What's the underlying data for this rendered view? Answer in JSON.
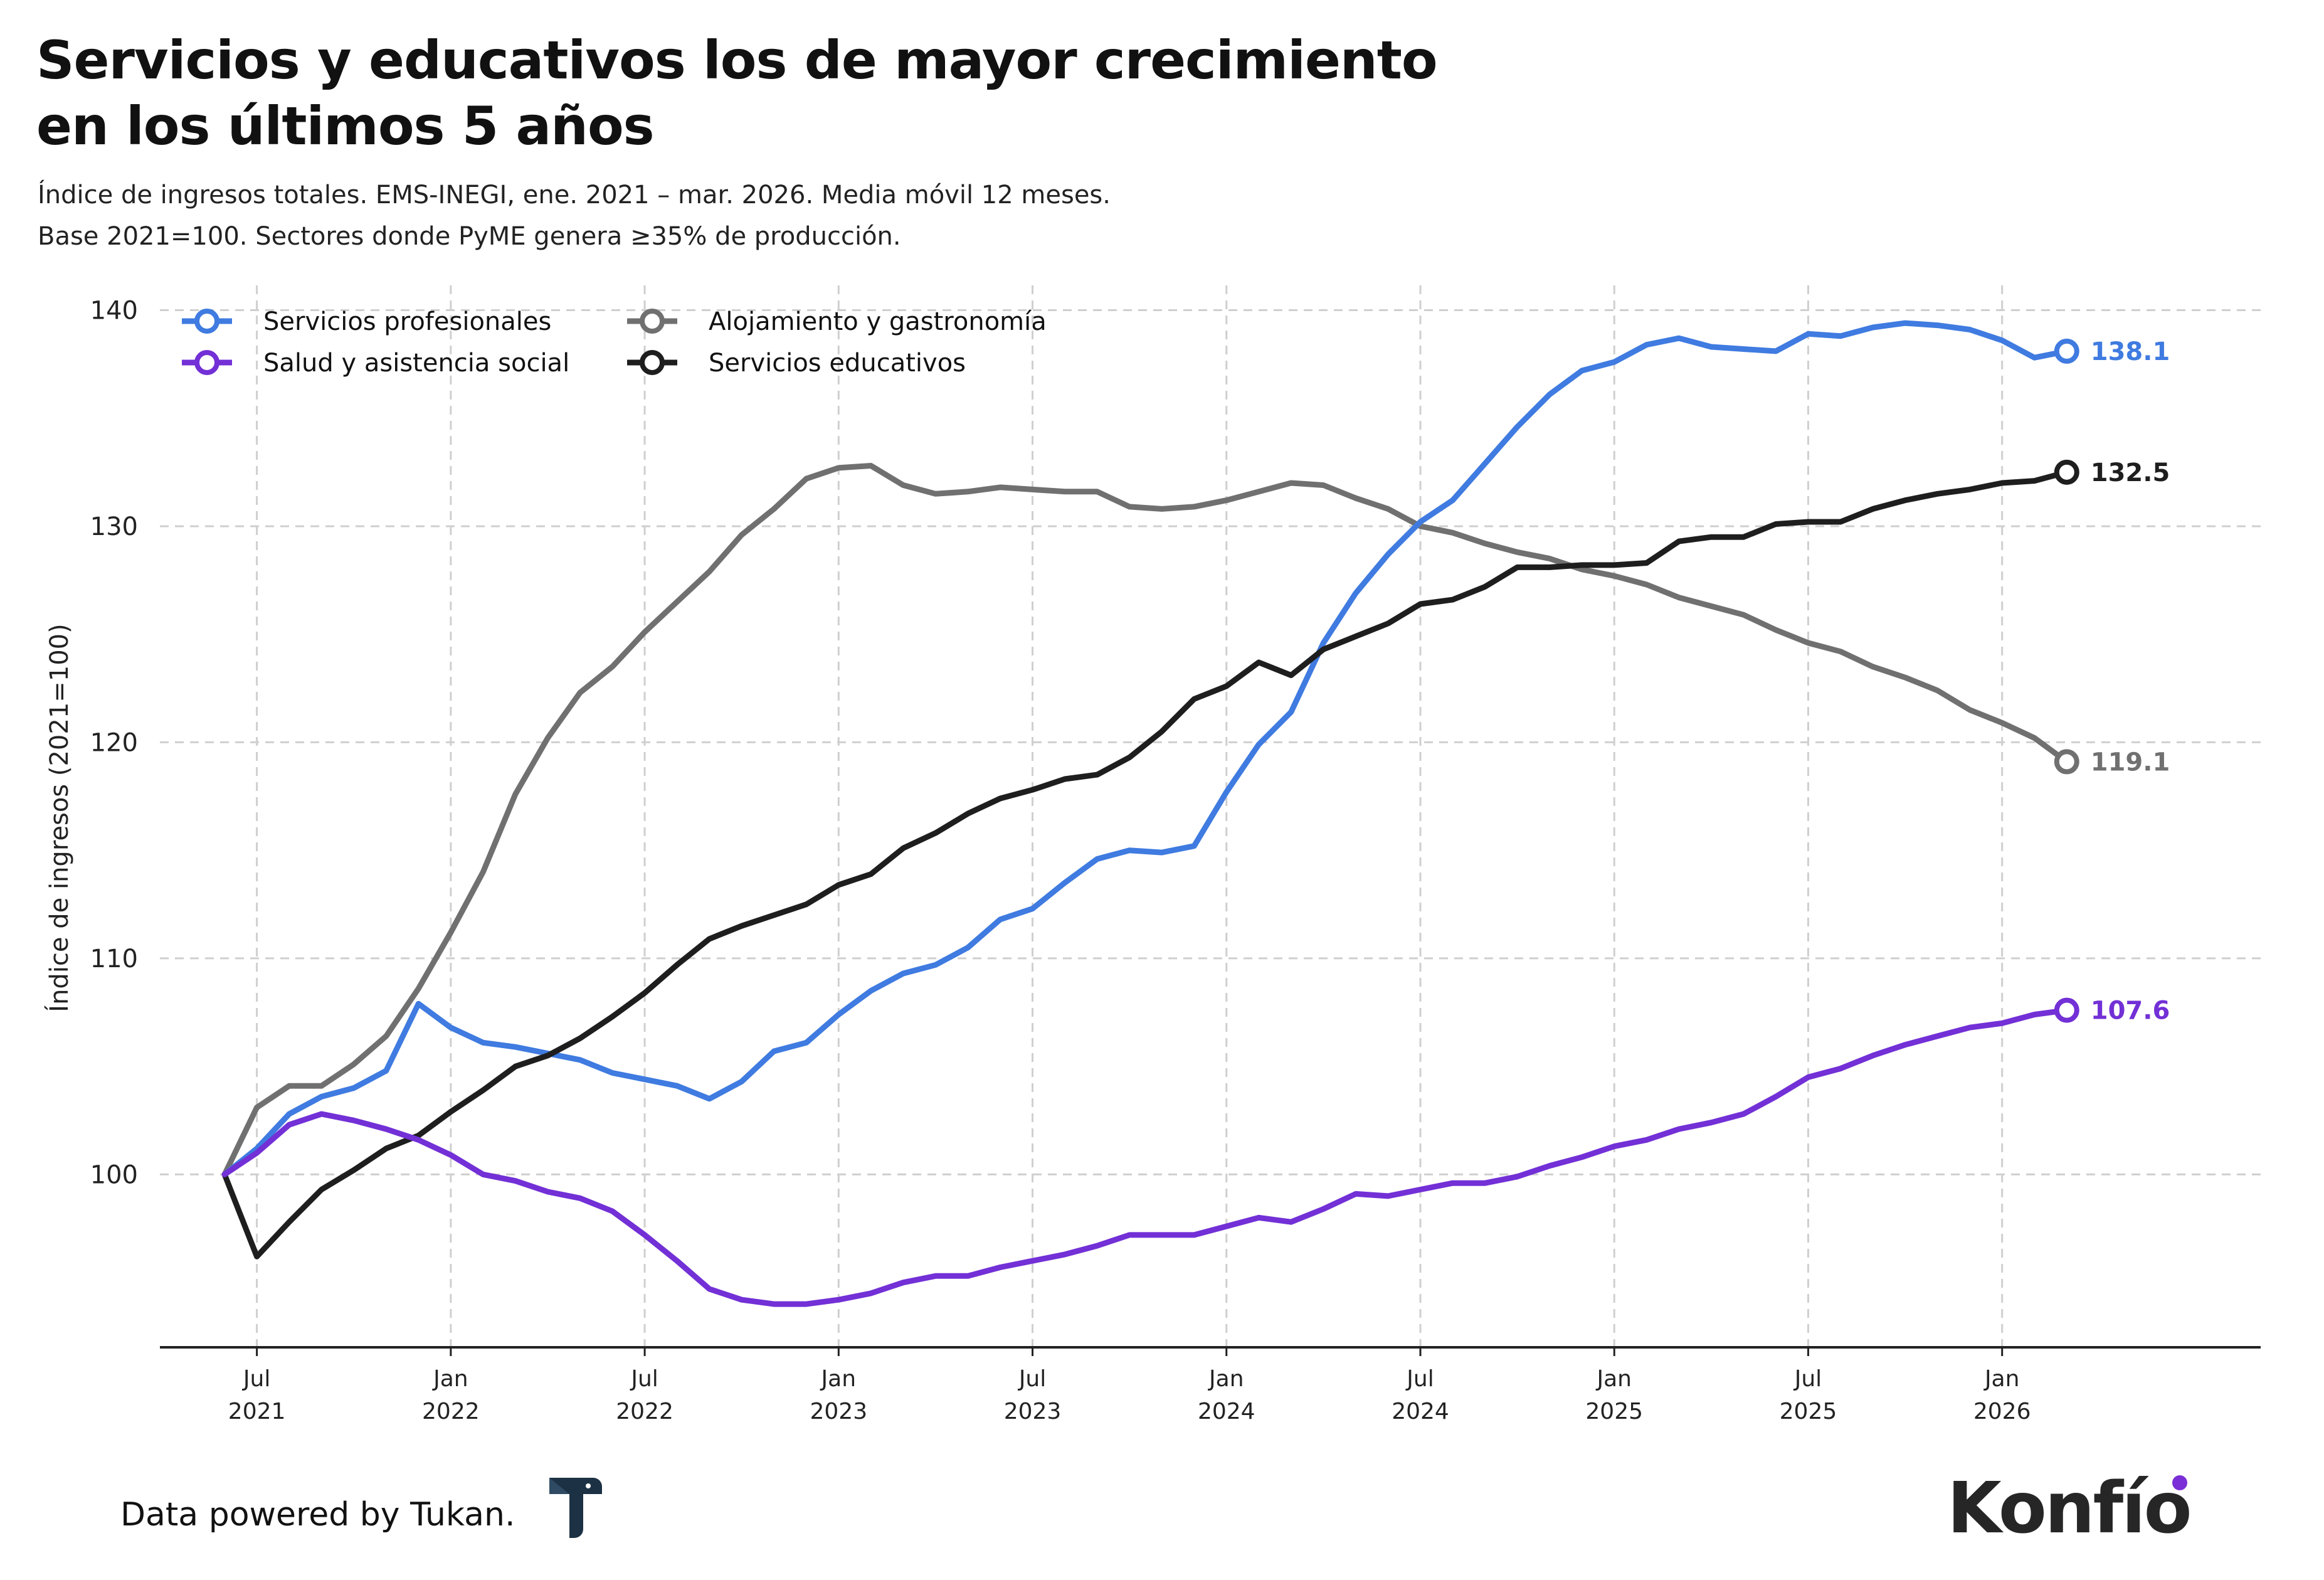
{
  "header": {
    "title_line1": "Servicios y educativos los de mayor crecimiento",
    "title_line2": "en los últimos 5 años",
    "subtitle_line1": "Índice de ingresos totales. EMS-INEGI, ene. 2021 – mar. 2026. Media móvil 12 meses.",
    "subtitle_line2": "Base 2021=100. Sectores donde PyME genera ≥35% de producción."
  },
  "footer": {
    "credit": "Data powered by Tukan.",
    "tukan_logo_icon": "tukan-logo-icon",
    "brand": "Konfío"
  },
  "colors": {
    "servicios_profesionales": "#3f7be0",
    "salud": "#7230d6",
    "alojamiento": "#707070",
    "educativos": "#1e1e1e",
    "grid": "#cfcfcf",
    "brand_dot": "#7b2fd6"
  },
  "chart_data": {
    "type": "line",
    "title": "Servicios y educativos los de mayor crecimiento en los últimos 5 años",
    "ylabel": "Índice de ingresos (2021=100)",
    "xlabel": "",
    "ylim": [
      92,
      141
    ],
    "yticks": [
      100,
      110,
      120,
      130,
      140
    ],
    "x_range": [
      "2021-04",
      "2026-09"
    ],
    "x_ticks": [
      {
        "date": "2021-07",
        "top": "Jul",
        "bottom": "2021"
      },
      {
        "date": "2022-01",
        "top": "Jan",
        "bottom": "2022"
      },
      {
        "date": "2022-07",
        "top": "Jul",
        "bottom": "2022"
      },
      {
        "date": "2023-01",
        "top": "Jan",
        "bottom": "2023"
      },
      {
        "date": "2023-07",
        "top": "Jul",
        "bottom": "2023"
      },
      {
        "date": "2024-01",
        "top": "Jan",
        "bottom": "2024"
      },
      {
        "date": "2024-07",
        "top": "Jul",
        "bottom": "2024"
      },
      {
        "date": "2025-01",
        "top": "Jan",
        "bottom": "2025"
      },
      {
        "date": "2025-07",
        "top": "Jul",
        "bottom": "2025"
      },
      {
        "date": "2026-01",
        "top": "Jan",
        "bottom": "2026"
      }
    ],
    "grid": true,
    "legend_position": "top-left",
    "x": [
      "2021-06",
      "2021-07",
      "2021-08",
      "2021-09",
      "2021-10",
      "2021-11",
      "2021-12",
      "2022-01",
      "2022-02",
      "2022-03",
      "2022-04",
      "2022-05",
      "2022-06",
      "2022-07",
      "2022-08",
      "2022-09",
      "2022-10",
      "2022-11",
      "2022-12",
      "2023-01",
      "2023-02",
      "2023-03",
      "2023-04",
      "2023-05",
      "2023-06",
      "2023-07",
      "2023-08",
      "2023-09",
      "2023-10",
      "2023-11",
      "2023-12",
      "2024-01",
      "2024-02",
      "2024-03",
      "2024-04",
      "2024-05",
      "2024-06",
      "2024-07",
      "2024-08",
      "2024-09",
      "2024-10",
      "2024-11",
      "2024-12",
      "2025-01",
      "2025-02",
      "2025-03",
      "2025-04",
      "2025-05",
      "2025-06",
      "2025-07",
      "2025-08",
      "2025-09",
      "2025-10",
      "2025-11",
      "2025-12",
      "2026-01",
      "2026-02",
      "2026-03"
    ],
    "series": [
      {
        "name": "Servicios profesionales",
        "color": "#3f7be0",
        "end_label": "138.1",
        "values": [
          100.0,
          101.2,
          102.8,
          103.6,
          104.0,
          104.8,
          107.9,
          106.8,
          106.1,
          105.9,
          105.6,
          105.3,
          104.7,
          104.4,
          104.1,
          103.5,
          104.3,
          105.7,
          106.1,
          107.4,
          108.5,
          109.3,
          109.7,
          110.5,
          111.8,
          112.3,
          113.5,
          114.6,
          115.0,
          114.9,
          115.2,
          117.7,
          119.9,
          121.4,
          124.6,
          126.9,
          128.7,
          130.2,
          131.2,
          132.9,
          134.6,
          136.1,
          137.2,
          137.6,
          138.4,
          138.7,
          138.3,
          138.2,
          138.1,
          138.9,
          138.8,
          139.2,
          139.4,
          139.3,
          139.1,
          138.6,
          137.8,
          138.1
        ]
      },
      {
        "name": "Salud y asistencia social",
        "color": "#7230d6",
        "end_label": "107.6",
        "values": [
          100.0,
          101.0,
          102.3,
          102.8,
          102.5,
          102.1,
          101.6,
          100.9,
          100.0,
          99.7,
          99.2,
          98.9,
          98.3,
          97.2,
          96.0,
          94.7,
          94.2,
          94.0,
          94.0,
          94.2,
          94.5,
          95.0,
          95.3,
          95.3,
          95.7,
          96.0,
          96.3,
          96.7,
          97.2,
          97.2,
          97.2,
          97.6,
          98.0,
          97.8,
          98.4,
          99.1,
          99.0,
          99.3,
          99.6,
          99.6,
          99.9,
          100.4,
          100.8,
          101.3,
          101.6,
          102.1,
          102.4,
          102.8,
          103.6,
          104.5,
          104.9,
          105.5,
          106.0,
          106.4,
          106.8,
          107.0,
          107.4,
          107.6
        ]
      },
      {
        "name": "Alojamiento y gastronomía",
        "color": "#707070",
        "end_label": "119.1",
        "values": [
          100.0,
          103.1,
          104.1,
          104.1,
          105.1,
          106.4,
          108.6,
          111.2,
          114.0,
          117.6,
          120.2,
          122.3,
          123.5,
          125.1,
          126.5,
          127.9,
          129.6,
          130.8,
          132.2,
          132.7,
          132.8,
          131.9,
          131.5,
          131.6,
          131.8,
          131.7,
          131.6,
          131.6,
          130.9,
          130.8,
          130.9,
          131.2,
          131.6,
          132.0,
          131.9,
          131.3,
          130.8,
          130.0,
          129.7,
          129.2,
          128.8,
          128.5,
          128.0,
          127.7,
          127.3,
          126.7,
          126.3,
          125.9,
          125.2,
          124.6,
          124.2,
          123.5,
          123.0,
          122.4,
          121.5,
          120.9,
          120.2,
          119.1
        ]
      },
      {
        "name": "Servicios educativos",
        "color": "#1e1e1e",
        "end_label": "132.5",
        "values": [
          100.0,
          96.2,
          97.8,
          99.3,
          100.2,
          101.2,
          101.8,
          102.9,
          103.9,
          105.0,
          105.5,
          106.3,
          107.3,
          108.4,
          109.7,
          110.9,
          111.5,
          112.0,
          112.5,
          113.4,
          113.9,
          115.1,
          115.8,
          116.7,
          117.4,
          117.8,
          118.3,
          118.5,
          119.3,
          120.5,
          122.0,
          122.6,
          123.7,
          123.1,
          124.3,
          124.9,
          125.5,
          126.4,
          126.6,
          127.2,
          128.1,
          128.1,
          128.2,
          128.2,
          128.3,
          129.3,
          129.5,
          129.5,
          130.1,
          130.2,
          130.2,
          130.8,
          131.2,
          131.5,
          131.7,
          132.0,
          132.1,
          132.5
        ]
      }
    ]
  }
}
